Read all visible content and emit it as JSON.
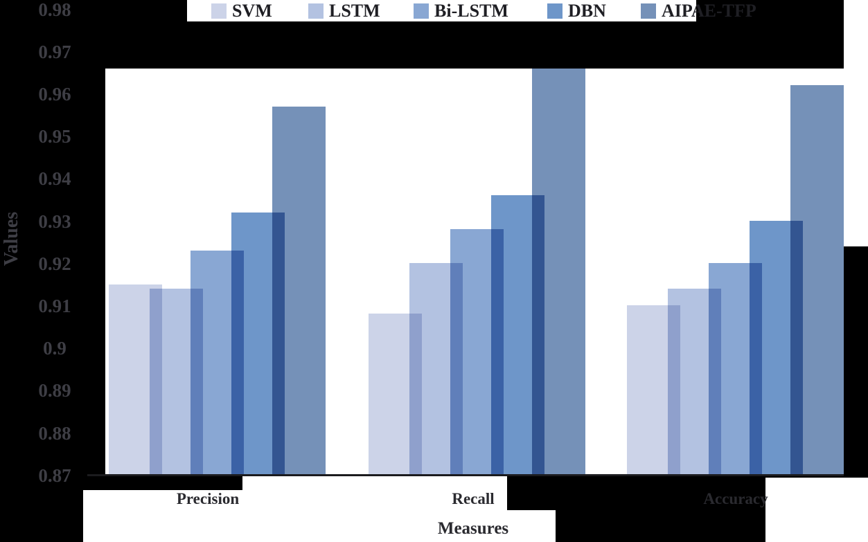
{
  "figure": {
    "background": "#000000",
    "plot_background": "#ffffff",
    "axis_line_color": "#1b1b1e"
  },
  "chart_data": {
    "type": "bar",
    "title": "",
    "xlabel": "Measures",
    "ylabel": "Values",
    "categories": [
      "Precision",
      "Recall",
      "Accuracy"
    ],
    "series": [
      {
        "name": "SVM",
        "color": "#ccd3e8",
        "values": [
          0.915,
          0.908,
          0.91
        ]
      },
      {
        "name": "LSTM",
        "color": "#b3c2e1",
        "values": [
          0.914,
          0.92,
          0.914
        ]
      },
      {
        "name": "Bi-LSTM",
        "color": "#89a7d3",
        "values": [
          0.923,
          0.928,
          0.92
        ]
      },
      {
        "name": "DBN",
        "color": "#6e96c9",
        "values": [
          0.932,
          0.936,
          0.93
        ]
      },
      {
        "name": "AIPAE-TFP",
        "color": "#7591b8",
        "values": [
          0.957,
          0.966,
          0.962
        ]
      }
    ],
    "ylim": [
      0.87,
      0.98
    ],
    "ytick_step": 0.01,
    "yticks": [
      "0.98",
      "0.97",
      "0.96",
      "0.95",
      "0.94",
      "0.93",
      "0.92",
      "0.91",
      "0.9",
      "0.89",
      "0.88",
      "0.87"
    ],
    "grid": false,
    "legend_position": "top",
    "bars_overlap": true
  }
}
